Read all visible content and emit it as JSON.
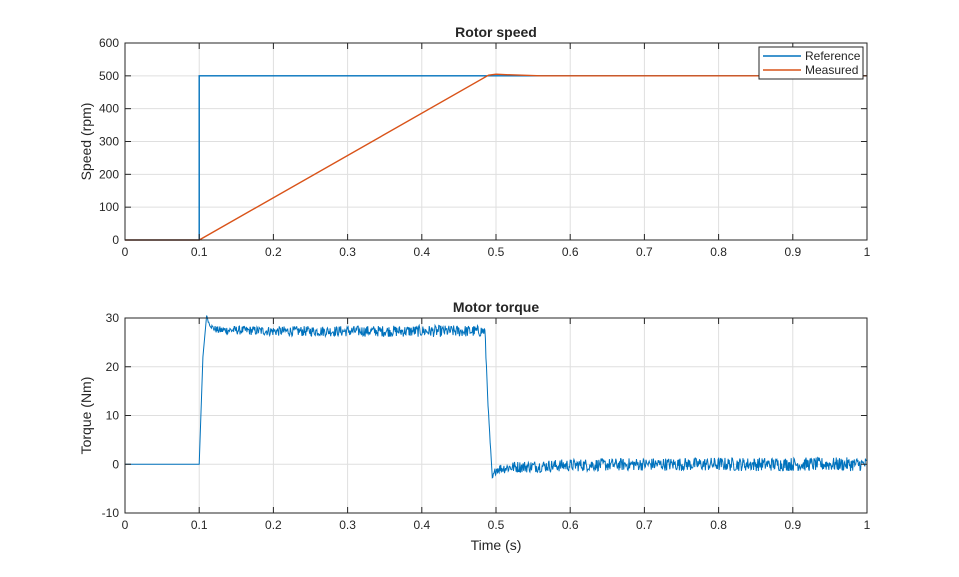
{
  "chart_data": [
    {
      "type": "line",
      "title": "Rotor speed",
      "xlabel": "",
      "ylabel": "Speed (rpm)",
      "xlim": [
        0,
        1
      ],
      "ylim": [
        0,
        600
      ],
      "xticks": [
        0,
        0.1,
        0.2,
        0.3,
        0.4,
        0.5,
        0.6,
        0.7,
        0.8,
        0.9,
        1
      ],
      "xtick_labels": [
        "0",
        "0.1",
        "0.2",
        "0.3",
        "0.4",
        "0.5",
        "0.6",
        "0.7",
        "0.8",
        "0.9",
        "1"
      ],
      "yticks": [
        0,
        100,
        200,
        300,
        400,
        500,
        600
      ],
      "ytick_labels": [
        "0",
        "100",
        "200",
        "300",
        "400",
        "500",
        "600"
      ],
      "grid": true,
      "legend_position": "top-right",
      "series": [
        {
          "name": "Reference",
          "color": "#0072BD",
          "x": [
            0,
            0.1,
            0.1,
            1
          ],
          "y": [
            0,
            0,
            500,
            500
          ]
        },
        {
          "name": "Measured",
          "color": "#D95319",
          "x": [
            0,
            0.1,
            0.49,
            0.5,
            0.52,
            0.56,
            1
          ],
          "y": [
            0,
            0,
            502,
            505,
            503,
            500,
            500
          ]
        }
      ]
    },
    {
      "type": "line",
      "title": "Motor torque",
      "xlabel": "Time (s)",
      "ylabel": "Torque (Nm)",
      "xlim": [
        0,
        1
      ],
      "ylim": [
        -10,
        30
      ],
      "xticks": [
        0,
        0.1,
        0.2,
        0.3,
        0.4,
        0.5,
        0.6,
        0.7,
        0.8,
        0.9,
        1
      ],
      "xtick_labels": [
        "0",
        "0.1",
        "0.2",
        "0.3",
        "0.4",
        "0.5",
        "0.6",
        "0.7",
        "0.8",
        "0.9",
        "1"
      ],
      "yticks": [
        -10,
        0,
        10,
        20,
        30
      ],
      "ytick_labels": [
        "-10",
        "0",
        "10",
        "20",
        "30"
      ],
      "grid": true,
      "series": [
        {
          "color": "#0072BD",
          "x": [
            0,
            0.1,
            0.105,
            0.11,
            0.113,
            0.118,
            0.125,
            0.15,
            0.2,
            0.3,
            0.4,
            0.485,
            0.49,
            0.495,
            0.5,
            0.52,
            0.6,
            0.7,
            0.8,
            0.9,
            1
          ],
          "y": [
            0,
            0,
            22,
            30.5,
            29,
            28,
            27.5,
            27.5,
            27.3,
            27.3,
            27.3,
            27.3,
            10,
            -3,
            -1,
            -0.6,
            -0.2,
            0,
            0,
            0,
            0
          ],
          "noise_amplitude": [
            0,
            0,
            0,
            0,
            0.4,
            0.6,
            0.8,
            0.9,
            1.0,
            1.1,
            1.2,
            1.2,
            0.5,
            0.5,
            1.0,
            1.2,
            1.3,
            1.3,
            1.4,
            1.4,
            1.4
          ]
        }
      ]
    }
  ]
}
